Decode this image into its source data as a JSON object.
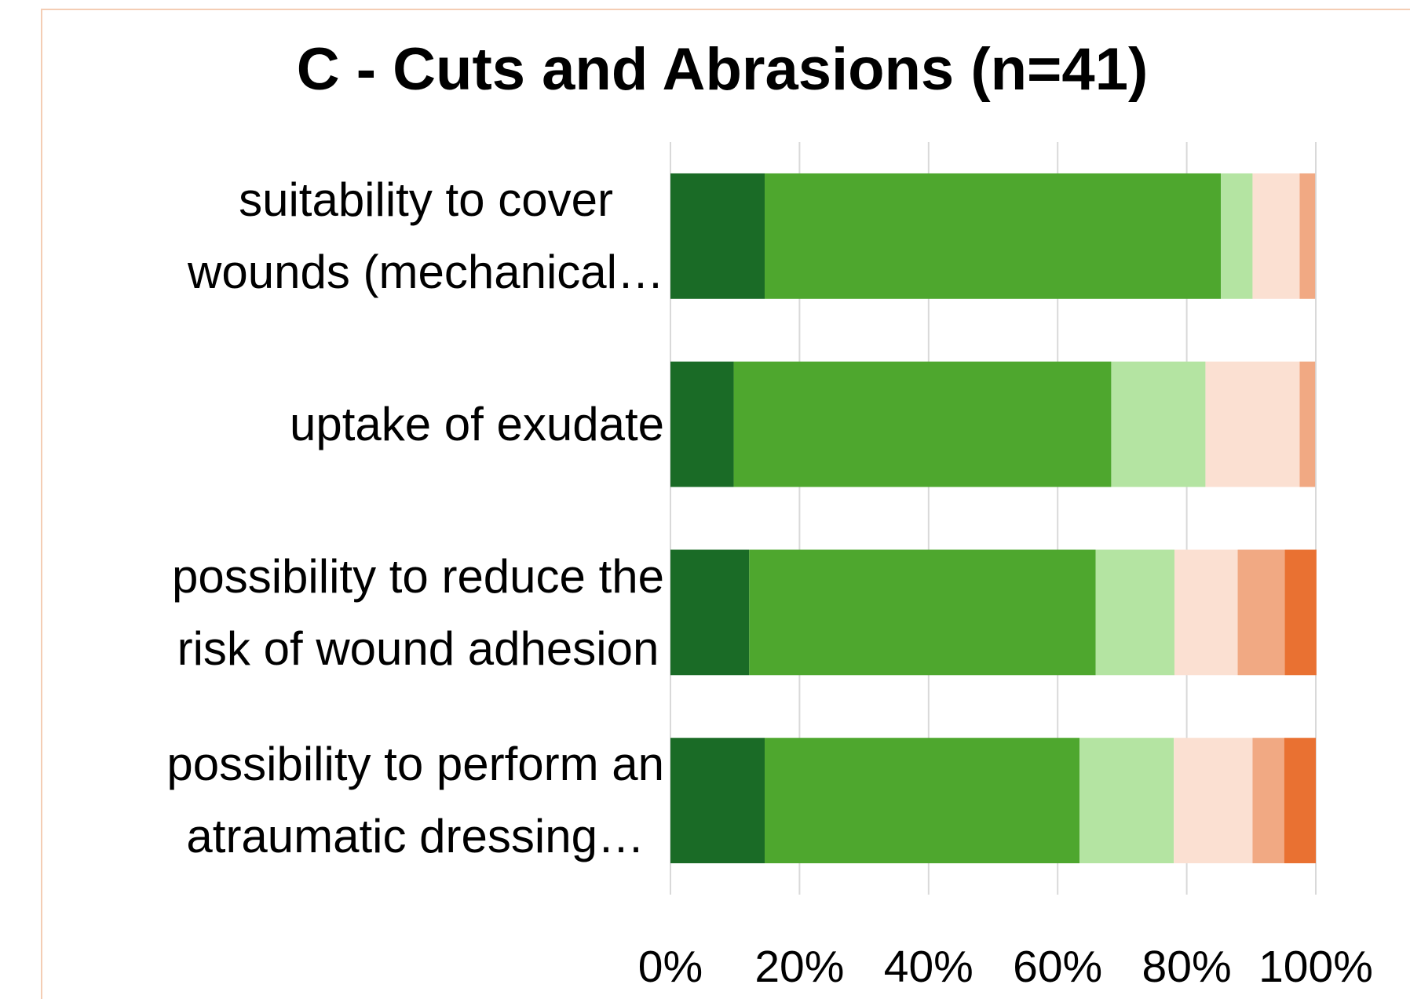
{
  "chart_data": {
    "type": "stacked_bar_horizontal",
    "title": "C - Cuts and Abrasions (n=41)",
    "categories": [
      "suitability to cover\nwounds (mechanical…",
      "uptake of exudate",
      "possibility to reduce the\nrisk of wound adhesion",
      "possibility to perform an\natraumatic dressing…"
    ],
    "series": [
      {
        "color": "#1a6b26",
        "values": [
          14.6,
          9.8,
          12.2,
          14.6
        ]
      },
      {
        "color": "#4ea72e",
        "values": [
          70.7,
          58.5,
          53.7,
          48.8
        ]
      },
      {
        "color": "#b4e4a2",
        "values": [
          4.9,
          14.6,
          12.2,
          14.6
        ]
      },
      {
        "color": "#fbe0d2",
        "values": [
          7.3,
          14.6,
          9.8,
          12.2
        ]
      },
      {
        "color": "#f1a983",
        "values": [
          2.4,
          2.4,
          7.3,
          4.9
        ]
      },
      {
        "color": "#e97132",
        "values": [
          0,
          0,
          4.9,
          4.9
        ]
      }
    ],
    "xlim": [
      0,
      100
    ],
    "xticks": [
      {
        "value": 0,
        "label": "0%"
      },
      {
        "value": 20,
        "label": "20%"
      },
      {
        "value": 40,
        "label": "40%"
      },
      {
        "value": 60,
        "label": "60%"
      },
      {
        "value": 80,
        "label": "80%"
      },
      {
        "value": 100,
        "label": "100%"
      }
    ],
    "grid": true
  }
}
